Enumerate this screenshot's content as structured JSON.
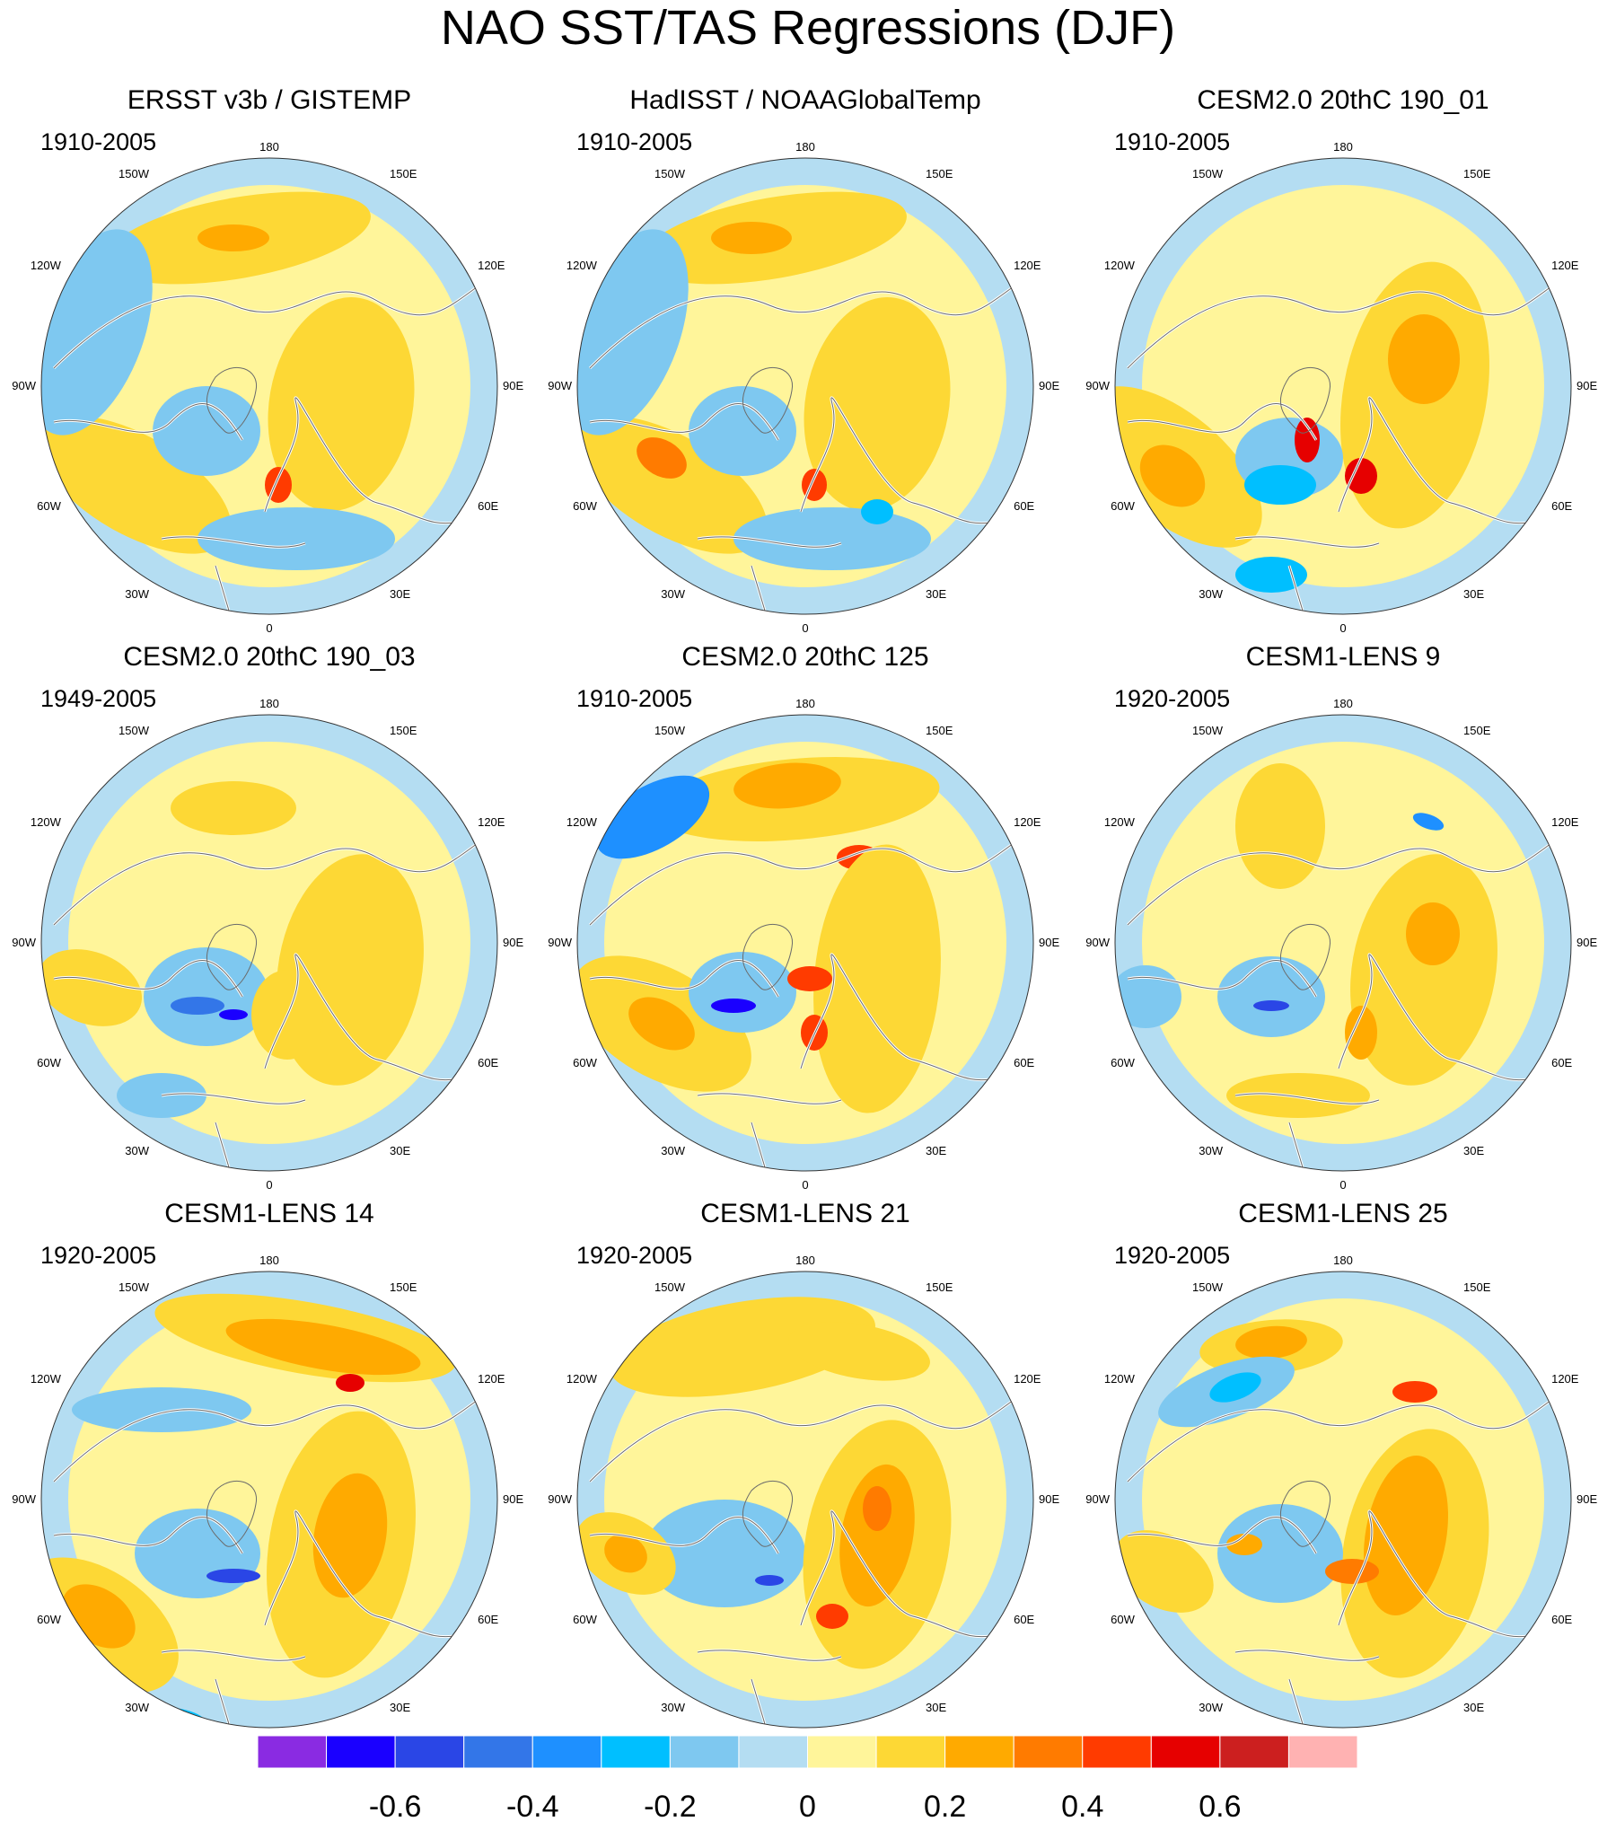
{
  "title": "NAO SST/TAS Regressions (DJF)",
  "panels": [
    {
      "title": "ERSST v3b / GISTEMP",
      "period": "1910-2005"
    },
    {
      "title": "HadISST / NOAAGlobalTemp",
      "period": "1910-2005"
    },
    {
      "title": "CESM2.0 20thC 190_01",
      "period": "1910-2005"
    },
    {
      "title": "CESM2.0 20thC 190_03",
      "period": "1949-2005"
    },
    {
      "title": "CESM2.0 20thC 125",
      "period": "1910-2005"
    },
    {
      "title": "CESM1-LENS 9",
      "period": "1920-2005"
    },
    {
      "title": "CESM1-LENS 14",
      "period": "1920-2005"
    },
    {
      "title": "CESM1-LENS 21",
      "period": "1920-2005"
    },
    {
      "title": "CESM1-LENS 25",
      "period": "1920-2005"
    }
  ],
  "longitude_labels": [
    "180",
    "150E",
    "120E",
    "90E",
    "60E",
    "30E",
    "0",
    "30W",
    "60W",
    "90W",
    "120W",
    "150W"
  ],
  "colorbar": {
    "colors": [
      "#8a2be2",
      "#1a00ff",
      "#2a46e6",
      "#3376e8",
      "#1e90ff",
      "#00bfff",
      "#7ec8f0",
      "#b4ddf2",
      "#fff59a",
      "#fdd835",
      "#ffaa00",
      "#ff7b00",
      "#ff3b00",
      "#e60000",
      "#cc1f1f",
      "#ffb2b2"
    ],
    "labels": [
      "-0.6",
      "-0.4",
      "-0.2",
      "0",
      "0.2",
      "0.4",
      "0.6"
    ],
    "label_values": [
      -0.6,
      -0.4,
      -0.2,
      0,
      0.2,
      0.4,
      0.6
    ]
  }
}
